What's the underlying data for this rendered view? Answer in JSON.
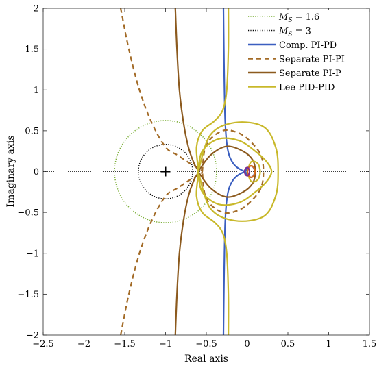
{
  "chart_data": {
    "type": "line",
    "title": "",
    "xlabel": "Real axis",
    "ylabel": "Imaginary axis",
    "xlim": [
      -2.5,
      1.5
    ],
    "ylim": [
      -2,
      2
    ],
    "xticks": [
      -2.5,
      -2,
      -1.5,
      -1,
      -0.5,
      0,
      0.5,
      1,
      1.5
    ],
    "yticks": [
      -2,
      -1.5,
      -1,
      -0.5,
      0,
      0.5,
      1,
      1.5,
      2
    ],
    "xtick_labels": [
      "−2.5",
      "−2",
      "−1.5",
      "−1",
      "−0.5",
      "0",
      "0.5",
      "1",
      "1.5"
    ],
    "ytick_labels": [
      "−2",
      "−1.5",
      "−1",
      "−0.5",
      "0",
      "0.5",
      "1",
      "1.5",
      "2"
    ],
    "grid": false,
    "legend_position": "top-right",
    "critical_point": [
      -1,
      0
    ],
    "circles": [
      {
        "name": "M_S = 1.6",
        "label_var": "M",
        "label_sub": "S",
        "label_rest": " = 1.6",
        "center": [
          -1,
          0
        ],
        "radius": 0.625,
        "color": "#77ac30",
        "style": "dotted"
      },
      {
        "name": "M_S = 3",
        "label_var": "M",
        "label_sub": "S",
        "label_rest": " = 3",
        "center": [
          -1,
          0
        ],
        "radius": 0.333,
        "color": "#000000",
        "style": "dotted"
      }
    ],
    "series": [
      {
        "name": "Comp. PI-PD",
        "color": "#3b5fc0",
        "style": "solid",
        "branches": [
          [
            [
              -0.29,
              2.0
            ],
            [
              -0.285,
              1.5
            ],
            [
              -0.278,
              1.0
            ],
            [
              -0.268,
              0.6
            ],
            [
              -0.25,
              0.35
            ],
            [
              -0.22,
              0.2
            ],
            [
              -0.17,
              0.1
            ],
            [
              -0.12,
              0.05
            ],
            [
              -0.07,
              0.02
            ],
            [
              -0.02,
              0.0
            ]
          ],
          [
            [
              -0.02,
              0.0
            ],
            [
              0.0,
              0.04
            ],
            [
              0.04,
              0.07
            ],
            [
              0.07,
              0.06
            ],
            [
              0.09,
              0.02
            ],
            [
              0.09,
              -0.02
            ],
            [
              0.07,
              -0.06
            ],
            [
              0.04,
              -0.07
            ],
            [
              0.0,
              -0.04
            ],
            [
              -0.02,
              0.0
            ]
          ],
          [
            [
              -0.02,
              0.0
            ],
            [
              -0.07,
              -0.02
            ],
            [
              -0.12,
              -0.05
            ],
            [
              -0.17,
              -0.1
            ],
            [
              -0.22,
              -0.2
            ],
            [
              -0.25,
              -0.35
            ],
            [
              -0.268,
              -0.6
            ],
            [
              -0.278,
              -1.0
            ],
            [
              -0.285,
              -1.5
            ],
            [
              -0.29,
              -2.0
            ]
          ]
        ]
      },
      {
        "name": "Separate PI-PI",
        "color": "#a36b27",
        "style": "dashed",
        "branches": [
          [
            [
              -1.55,
              2.0
            ],
            [
              -1.45,
              1.5
            ],
            [
              -1.32,
              1.0
            ],
            [
              -1.17,
              0.6
            ],
            [
              -1.0,
              0.3
            ],
            [
              -0.85,
              0.2
            ],
            [
              -0.7,
              0.1
            ],
            [
              -0.55,
              0.0
            ],
            [
              -0.7,
              -0.1
            ],
            [
              -0.85,
              -0.2
            ],
            [
              -1.0,
              -0.3
            ],
            [
              -1.17,
              -0.6
            ],
            [
              -1.32,
              -1.0
            ],
            [
              -1.45,
              -1.5
            ],
            [
              -1.55,
              -2.0
            ]
          ],
          [
            [
              -0.55,
              0.0
            ],
            [
              -0.5,
              0.33
            ],
            [
              -0.3,
              0.5
            ],
            [
              -0.1,
              0.47
            ],
            [
              0.05,
              0.36
            ],
            [
              0.17,
              0.2
            ],
            [
              0.2,
              0.0
            ],
            [
              0.17,
              -0.2
            ],
            [
              0.05,
              -0.36
            ],
            [
              -0.1,
              -0.47
            ],
            [
              -0.3,
              -0.5
            ],
            [
              -0.5,
              -0.33
            ],
            [
              -0.55,
              0.0
            ]
          ]
        ]
      },
      {
        "name": "Separate PI-P",
        "color": "#8c5a1e",
        "style": "solid",
        "branches": [
          [
            [
              -0.88,
              2.0
            ],
            [
              -0.86,
              1.5
            ],
            [
              -0.83,
              1.0
            ],
            [
              -0.78,
              0.6
            ],
            [
              -0.72,
              0.3
            ],
            [
              -0.65,
              0.1
            ],
            [
              -0.6,
              0.0
            ],
            [
              -0.65,
              -0.1
            ],
            [
              -0.72,
              -0.3
            ],
            [
              -0.78,
              -0.6
            ],
            [
              -0.83,
              -1.0
            ],
            [
              -0.86,
              -1.5
            ],
            [
              -0.88,
              -2.0
            ]
          ],
          [
            [
              -0.6,
              0.0
            ],
            [
              -0.45,
              0.2
            ],
            [
              -0.25,
              0.31
            ],
            [
              -0.05,
              0.25
            ],
            [
              0.07,
              0.14
            ],
            [
              0.1,
              0.0
            ],
            [
              0.07,
              -0.14
            ],
            [
              -0.05,
              -0.25
            ],
            [
              -0.25,
              -0.31
            ],
            [
              -0.45,
              -0.2
            ],
            [
              -0.6,
              0.0
            ]
          ]
        ]
      },
      {
        "name": "Lee PID-PID",
        "color": "#c8b82a",
        "style": "solid",
        "branches": [
          [
            [
              -0.23,
              2.0
            ],
            [
              -0.23,
              1.5
            ],
            [
              -0.25,
              1.0
            ],
            [
              -0.3,
              0.75
            ],
            [
              -0.4,
              0.62
            ],
            [
              -0.55,
              0.5
            ],
            [
              -0.62,
              0.3
            ],
            [
              -0.6,
              0.0
            ],
            [
              -0.62,
              -0.3
            ],
            [
              -0.55,
              -0.5
            ],
            [
              -0.4,
              -0.62
            ],
            [
              -0.3,
              -0.75
            ],
            [
              -0.25,
              -1.0
            ],
            [
              -0.23,
              -1.5
            ],
            [
              -0.23,
              -2.0
            ]
          ],
          [
            [
              -0.6,
              0.0
            ],
            [
              -0.55,
              -0.25
            ],
            [
              -0.35,
              -0.4
            ],
            [
              -0.1,
              -0.38
            ],
            [
              0.1,
              -0.25
            ],
            [
              0.24,
              -0.12
            ],
            [
              0.3,
              0.0
            ],
            [
              0.24,
              0.12
            ],
            [
              0.1,
              0.25
            ],
            [
              -0.1,
              0.38
            ],
            [
              -0.35,
              0.4
            ],
            [
              -0.55,
              0.25
            ],
            [
              -0.6,
              0.0
            ]
          ],
          [
            [
              -0.6,
              0.0
            ],
            [
              -0.45,
              0.45
            ],
            [
              -0.15,
              0.6
            ],
            [
              0.2,
              0.55
            ],
            [
              0.35,
              0.3
            ],
            [
              0.38,
              0.0
            ],
            [
              0.35,
              -0.3
            ],
            [
              0.2,
              -0.55
            ],
            [
              -0.15,
              -0.6
            ],
            [
              -0.45,
              -0.45
            ],
            [
              -0.6,
              0.0
            ]
          ],
          [
            [
              0.0,
              0.0
            ],
            [
              0.05,
              0.12
            ],
            [
              0.13,
              0.1
            ],
            [
              0.16,
              0.0
            ],
            [
              0.13,
              -0.1
            ],
            [
              0.05,
              -0.12
            ],
            [
              0.0,
              0.0
            ]
          ]
        ]
      }
    ],
    "extra_marks": [
      {
        "name": "orange-inner-loop",
        "color": "#d96b19",
        "center": [
          0.05,
          0
        ],
        "rx": 0.045,
        "ry": 0.07
      },
      {
        "name": "purple-inner-loop",
        "color": "#7e2f8e",
        "center": [
          0.0,
          0
        ],
        "rx": 0.03,
        "ry": 0.05
      }
    ]
  }
}
